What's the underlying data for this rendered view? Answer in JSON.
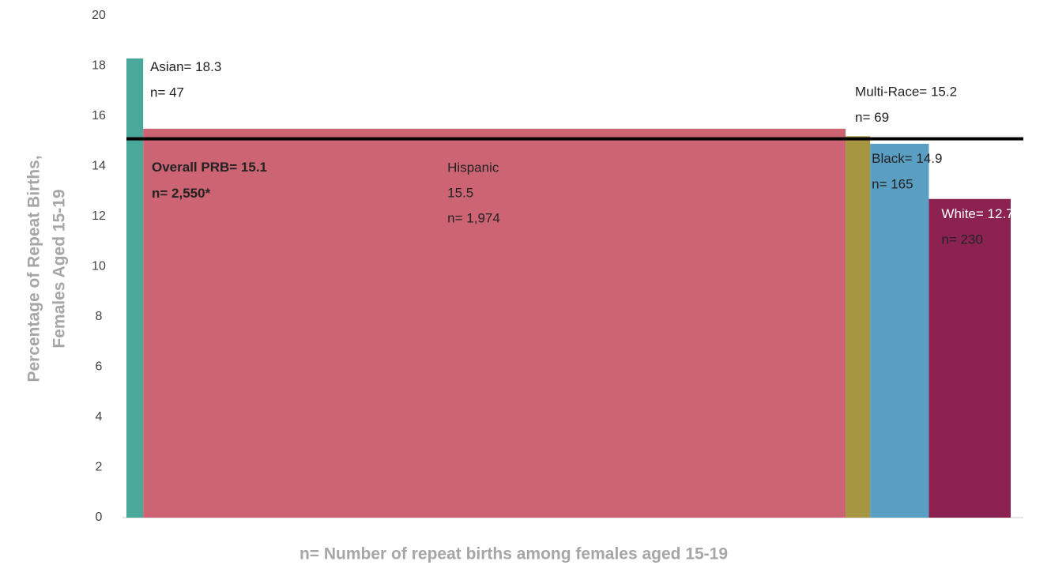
{
  "chart_data": {
    "type": "variwide-bar",
    "y_axis_title": [
      "Percentage of Repeat Births,",
      "Females Aged 15-19"
    ],
    "x_axis_title": "n= Number of repeat births among females aged 15-19",
    "categories": [
      "Asian",
      "Hispanic",
      "Multi-Race",
      "Black",
      "White"
    ],
    "values": [
      18.3,
      15.5,
      15.2,
      14.9,
      12.7
    ],
    "value_labels": [
      "= 18.3",
      "15.5",
      "= 15.2",
      "= 14.9",
      "= 12.7"
    ],
    "n_values": [
      47,
      1974,
      69,
      165,
      230
    ],
    "n_labels": [
      "n= 47",
      "n= 1,974",
      "n= 69",
      "n= 165",
      "n= 230"
    ],
    "colors": [
      "#4aa89b",
      "#cc6474",
      "#a69642",
      "#5a9ec3",
      "#8b2252"
    ],
    "overall": {
      "value": 15.1,
      "label": "Overall PRB= 15.1",
      "n_label": "n= 2,550*"
    },
    "ylim": [
      0,
      20
    ],
    "yticks": [
      0,
      2,
      4,
      6,
      8,
      10,
      12,
      14,
      16,
      18,
      20
    ],
    "grid": false
  }
}
